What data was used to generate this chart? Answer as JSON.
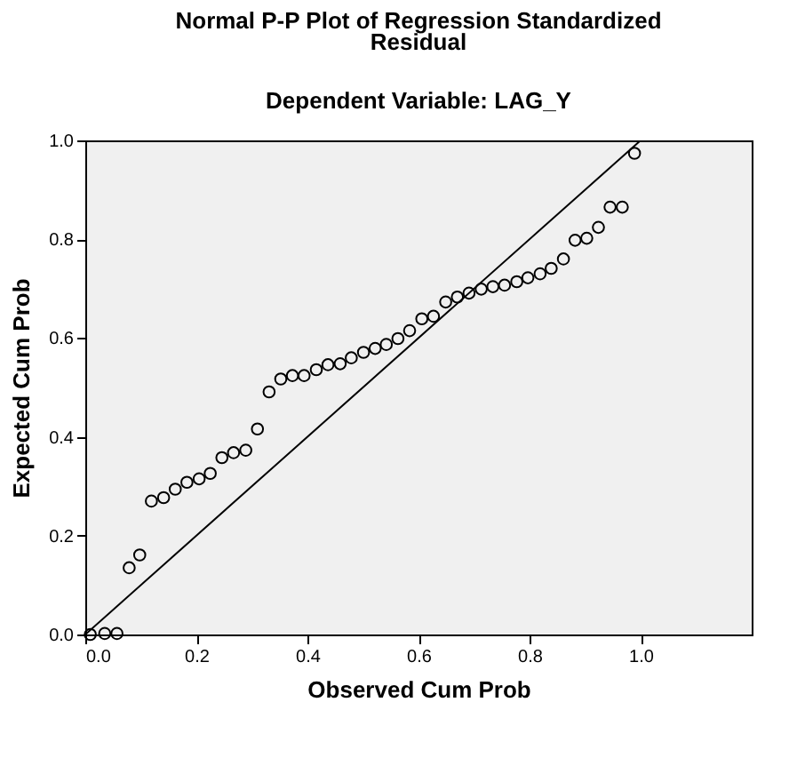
{
  "chart_data": {
    "type": "scatter",
    "title": "Normal P-P Plot of Regression Standardized Residual",
    "subtitle": "Dependent Variable: LAG_Y",
    "xlabel": "Observed Cum Prob",
    "ylabel": "Expected Cum Prob",
    "xlim": [
      0,
      1.2
    ],
    "ylim": [
      0,
      1
    ],
    "xticks": [
      {
        "value": 0,
        "label": "0.0"
      },
      {
        "value": 0.2,
        "label": "0.2"
      },
      {
        "value": 0.4,
        "label": "0.4"
      },
      {
        "value": 0.6,
        "label": "0.6"
      },
      {
        "value": 0.8,
        "label": "0.8"
      },
      {
        "value": 1,
        "label": "1.0"
      }
    ],
    "yticks": [
      {
        "value": 0,
        "label": "0.0"
      },
      {
        "value": 0.2,
        "label": "0.2"
      },
      {
        "value": 0.4,
        "label": "0.4"
      },
      {
        "value": 0.6,
        "label": "0.6"
      },
      {
        "value": 0.8,
        "label": "0.8"
      },
      {
        "value": 1,
        "label": "1.0"
      }
    ],
    "grid": false,
    "series": [
      {
        "marker": "circle",
        "color": "#000000",
        "x": [
          0.009,
          0.035,
          0.057,
          0.079,
          0.098,
          0.119,
          0.141,
          0.162,
          0.183,
          0.205,
          0.225,
          0.246,
          0.267,
          0.289,
          0.31,
          0.331,
          0.352,
          0.373,
          0.394,
          0.416,
          0.437,
          0.459,
          0.479,
          0.501,
          0.522,
          0.542,
          0.563,
          0.584,
          0.606,
          0.627,
          0.649,
          0.67,
          0.691,
          0.713,
          0.734,
          0.755,
          0.777,
          0.797,
          0.819,
          0.839,
          0.861,
          0.882,
          0.903,
          0.924,
          0.945,
          0.967,
          0.989
        ],
        "values": [
          0,
          0.002,
          0.002,
          0.135,
          0.161,
          0.27,
          0.277,
          0.294,
          0.308,
          0.315,
          0.326,
          0.358,
          0.368,
          0.373,
          0.416,
          0.491,
          0.517,
          0.524,
          0.524,
          0.536,
          0.546,
          0.548,
          0.56,
          0.571,
          0.579,
          0.587,
          0.599,
          0.615,
          0.639,
          0.644,
          0.673,
          0.683,
          0.691,
          0.699,
          0.704,
          0.707,
          0.714,
          0.722,
          0.73,
          0.741,
          0.76,
          0.798,
          0.802,
          0.824,
          0.865,
          0.865,
          0.974
        ]
      },
      {
        "type": "line",
        "color": "#000000",
        "x": [
          0,
          1
        ],
        "values": [
          0,
          1
        ]
      }
    ]
  }
}
